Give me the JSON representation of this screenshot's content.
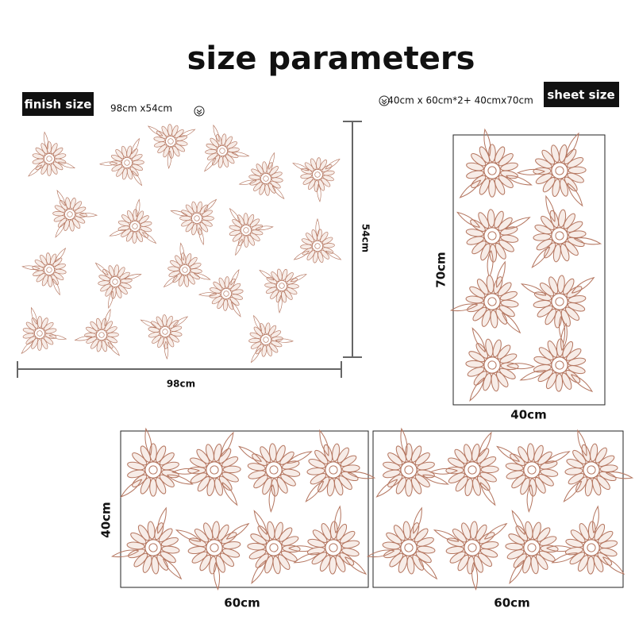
{
  "title": "size parameters",
  "finish": {
    "label": "finish size",
    "size": "98cm x54cm",
    "height": "54cm",
    "width": "98cm"
  },
  "sheets": {
    "label": "sheet size",
    "size": "40cm x 60cm*2+ 40cmx70cm",
    "panels": [
      {
        "height": "70cm",
        "width": "40cm"
      },
      {
        "height": "40cm",
        "width": "60cm"
      },
      {
        "width": "60cm"
      }
    ]
  }
}
